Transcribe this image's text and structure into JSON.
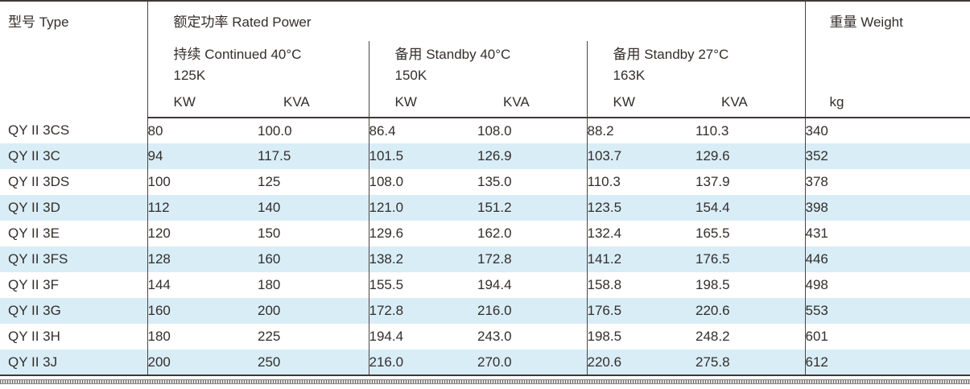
{
  "header": {
    "type_label": "型号 Type",
    "rated_power_label": "额定功率 Rated Power",
    "weight_label": "重量 Weight",
    "weight_unit": "kg",
    "groups": [
      {
        "title": "持续 Continued 40°C",
        "subtitle": "125K",
        "col1": "KW",
        "col2": "KVA"
      },
      {
        "title": "备用 Standby 40°C",
        "subtitle": "150K",
        "col1": "KW",
        "col2": "KVA"
      },
      {
        "title": "备用 Standby 27°C",
        "subtitle": "163K",
        "col1": "KW",
        "col2": "KVA"
      }
    ]
  },
  "rows": [
    {
      "model": "QY II 3CS",
      "values": [
        "80",
        "100.0",
        "86.4",
        "108.0",
        "88.2",
        "110.3",
        "340"
      ]
    },
    {
      "model": "QY II 3C",
      "values": [
        "94",
        "117.5",
        "101.5",
        "126.9",
        "103.7",
        "129.6",
        "352"
      ]
    },
    {
      "model": "QY II 3DS",
      "values": [
        "100",
        "125",
        "108.0",
        "135.0",
        "110.3",
        "137.9",
        "378"
      ]
    },
    {
      "model": "QY II 3D",
      "values": [
        "112",
        "140",
        "121.0",
        "151.2",
        "123.5",
        "154.4",
        "398"
      ]
    },
    {
      "model": "QY II 3E",
      "values": [
        "120",
        "150",
        "129.6",
        "162.0",
        "132.4",
        "165.5",
        "431"
      ]
    },
    {
      "model": "QY II 3FS",
      "values": [
        "128",
        "160",
        "138.2",
        "172.8",
        "141.2",
        "176.5",
        "446"
      ]
    },
    {
      "model": "QY II 3F",
      "values": [
        "144",
        "180",
        "155.5",
        "194.4",
        "158.8",
        "198.5",
        "498"
      ]
    },
    {
      "model": "QY II 3G",
      "values": [
        "160",
        "200",
        "172.8",
        "216.0",
        "176.5",
        "220.6",
        "553"
      ]
    },
    {
      "model": "QY II 3H",
      "values": [
        "180",
        "225",
        "194.4",
        "243.0",
        "198.5",
        "248.2",
        "601"
      ]
    },
    {
      "model": "QY II 3J",
      "values": [
        "200",
        "250",
        "216.0",
        "270.0",
        "220.6",
        "275.8",
        "612"
      ]
    }
  ],
  "colors": {
    "stripe_blue": "#d9edf7",
    "rule_dark": "#3d3a38",
    "text": "#332e2b"
  }
}
